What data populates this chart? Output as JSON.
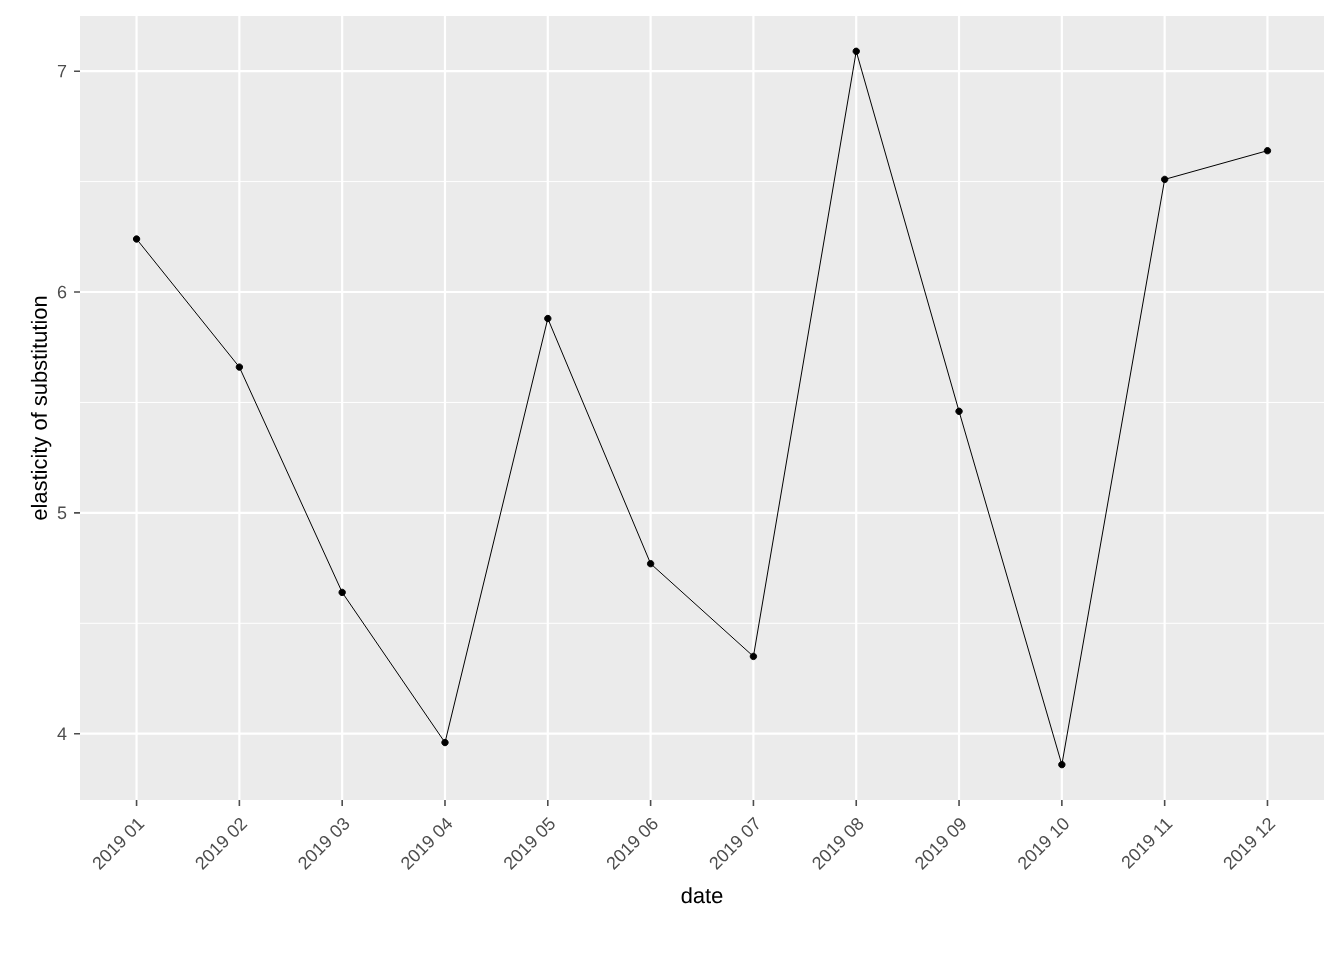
{
  "chart_data": {
    "type": "line",
    "xlabel": "date",
    "ylabel": "elasticity of substitution",
    "categories": [
      "2019 01",
      "2019 02",
      "2019 03",
      "2019 04",
      "2019 05",
      "2019 06",
      "2019 07",
      "2019 08",
      "2019 09",
      "2019 10",
      "2019 11",
      "2019 12"
    ],
    "values": [
      6.24,
      5.66,
      4.64,
      3.96,
      5.88,
      4.77,
      4.35,
      7.09,
      5.46,
      3.86,
      6.51,
      6.64
    ],
    "color": "#000000",
    "marker": "circle",
    "line_style": "solid",
    "ylim": [
      3.7,
      7.25
    ],
    "yticks": [
      4,
      5,
      6,
      7
    ],
    "grid": true
  }
}
